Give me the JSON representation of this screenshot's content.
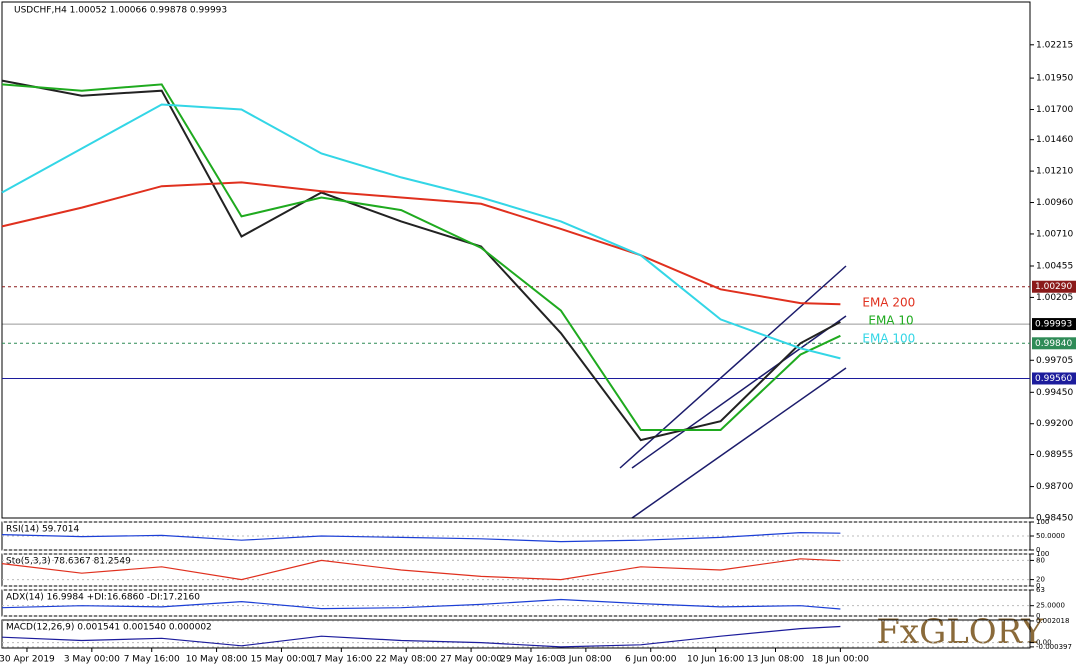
{
  "header": "USDCHF,H4  1.00052 1.00066 0.99878 0.99993",
  "logo": "FxGLORY",
  "chart_data": [
    {
      "type": "line",
      "title": "USDCHF,H4",
      "x": [
        0,
        16,
        32,
        48,
        64,
        80,
        96,
        112,
        128,
        144,
        160,
        168
      ],
      "xlim": [
        0,
        206
      ],
      "xticks": [
        {
          "value": 5,
          "label": "30 Apr 2019"
        },
        {
          "value": 18,
          "label": "3 May 00:00"
        },
        {
          "value": 30,
          "label": "7 May 16:00"
        },
        {
          "value": 43,
          "label": "10 May 08:00"
        },
        {
          "value": 56,
          "label": "15 May 00:00"
        },
        {
          "value": 68,
          "label": "17 May 16:00"
        },
        {
          "value": 81,
          "label": "22 May 08:00"
        },
        {
          "value": 94,
          "label": "27 May 00:00"
        },
        {
          "value": 106,
          "label": "29 May 16:00"
        },
        {
          "value": 117,
          "label": "3 Jun 08:00"
        },
        {
          "value": 130,
          "label": "6 Jun 00:00"
        },
        {
          "value": 143,
          "label": "10 Jun 16:00"
        },
        {
          "value": 155,
          "label": "13 Jun 08:00"
        },
        {
          "value": 168,
          "label": "18 Jun 00:00"
        }
      ],
      "ylim": [
        0.9845,
        1.0246
      ],
      "yticks": [
        {
          "value": 1.02215,
          "label": "1.02215"
        },
        {
          "value": 1.0195,
          "label": "1.01950"
        },
        {
          "value": 1.017,
          "label": "1.01700"
        },
        {
          "value": 1.0146,
          "label": "1.01460"
        },
        {
          "value": 1.0121,
          "label": "1.01210"
        },
        {
          "value": 1.0096,
          "label": "1.00960"
        },
        {
          "value": 1.0071,
          "label": "1.00710"
        },
        {
          "value": 1.00455,
          "label": "1.00455"
        },
        {
          "value": 1.00205,
          "label": "1.00205"
        },
        {
          "value": 0.99705,
          "label": "0.99705"
        },
        {
          "value": 0.9945,
          "label": "0.99450"
        },
        {
          "value": 0.992,
          "label": "0.99200"
        },
        {
          "value": 0.98955,
          "label": "0.98955"
        },
        {
          "value": 0.987,
          "label": "0.98700"
        },
        {
          "value": 0.9845,
          "label": "0.98450"
        }
      ],
      "levels": [
        {
          "value": 1.0029,
          "label": "1.00290",
          "color": "#8b1a1a"
        },
        {
          "value": 0.99993,
          "label": "0.99993",
          "color": "#000000"
        },
        {
          "value": 0.9984,
          "label": "0.99840",
          "color": "#2e8b57"
        },
        {
          "value": 0.9956,
          "label": "0.99560",
          "color": "#1c1c9c"
        }
      ],
      "series": [
        {
          "name": "Price",
          "color": "#222222",
          "values": [
            1.0193,
            1.0181,
            1.0185,
            1.0069,
            1.0104,
            1.0081,
            1.0061,
            0.9992,
            0.9907,
            0.9922,
            0.9984,
            1.0001
          ]
        },
        {
          "name": "EMA 200",
          "color": "#e0301e",
          "values": [
            1.0077,
            1.0092,
            1.0109,
            1.0112,
            1.0105,
            1.01,
            1.0095,
            1.0075,
            1.0054,
            1.0027,
            1.0016,
            1.0015
          ]
        },
        {
          "name": "EMA 10",
          "color": "#1faa1f",
          "values": [
            1.019,
            1.0185,
            1.019,
            1.0085,
            1.01,
            1.009,
            1.006,
            1.001,
            0.9915,
            0.9915,
            0.9975,
            0.999
          ]
        },
        {
          "name": "EMA 100",
          "color": "#33d6e6",
          "values": [
            1.0104,
            1.0139,
            1.0174,
            1.017,
            1.0135,
            1.0116,
            1.01,
            1.0081,
            1.0054,
            1.0003,
            0.998,
            0.9972
          ]
        }
      ]
    },
    {
      "type": "line",
      "title": "RSI(14) 59.7014",
      "x": [
        0,
        16,
        32,
        48,
        64,
        80,
        96,
        112,
        128,
        144,
        160,
        168
      ],
      "xlim": [
        0,
        206
      ],
      "ylim": [
        0,
        100
      ],
      "yticks": [
        100,
        {
          "value": 50,
          "label": "50.0000"
        },
        0
      ],
      "series": [
        {
          "name": "RSI",
          "color": "#1c3fd6",
          "values": [
            55,
            48,
            52,
            35,
            50,
            45,
            40,
            30,
            35,
            45,
            62,
            60
          ]
        }
      ]
    },
    {
      "type": "line",
      "title": "Sto(5,3,3) 78.6367 81.2549",
      "x": [
        0,
        16,
        32,
        48,
        64,
        80,
        96,
        112,
        128,
        144,
        160,
        168
      ],
      "xlim": [
        0,
        206
      ],
      "ylim": [
        0,
        100
      ],
      "yticks": [
        100,
        80,
        20,
        0
      ],
      "series": [
        {
          "name": "Sto",
          "color": "#e0301e",
          "values": [
            70,
            40,
            60,
            20,
            80,
            50,
            30,
            20,
            60,
            50,
            85,
            79
          ]
        }
      ]
    },
    {
      "type": "line",
      "title": "ADX(14) 16.9984 +DI:16.6860 -DI:17.2160",
      "x": [
        0,
        16,
        32,
        48,
        64,
        80,
        96,
        112,
        128,
        144,
        160,
        168
      ],
      "xlim": [
        0,
        206
      ],
      "ylim": [
        0,
        63
      ],
      "yticks": [
        63,
        {
          "value": 25,
          "label": "25.0000"
        },
        0
      ],
      "series": [
        {
          "name": "ADX",
          "color": "#1c3fd6",
          "values": [
            20,
            25,
            22,
            35,
            18,
            20,
            28,
            40,
            30,
            22,
            25,
            17
          ]
        }
      ]
    },
    {
      "type": "line",
      "title": "MACD(12,26,9) 0.001541 0.001540 0.000002",
      "x": [
        0,
        16,
        32,
        48,
        64,
        80,
        96,
        112,
        128,
        144,
        160,
        168
      ],
      "xlim": [
        0,
        206
      ],
      "ylim": [
        -0.0005,
        0.0021
      ],
      "yticks": [
        0.002018,
        {
          "value": 0,
          "label": "0.00"
        },
        -0.000397
      ],
      "series": [
        {
          "name": "MACD",
          "color": "#1c1c9c",
          "values": [
            0.0005,
            0.0002,
            0.0004,
            -0.0003,
            0.0006,
            0.0002,
            0,
            -0.0004,
            -0.0002,
            0.0006,
            0.0013,
            0.0015
          ]
        }
      ]
    }
  ]
}
